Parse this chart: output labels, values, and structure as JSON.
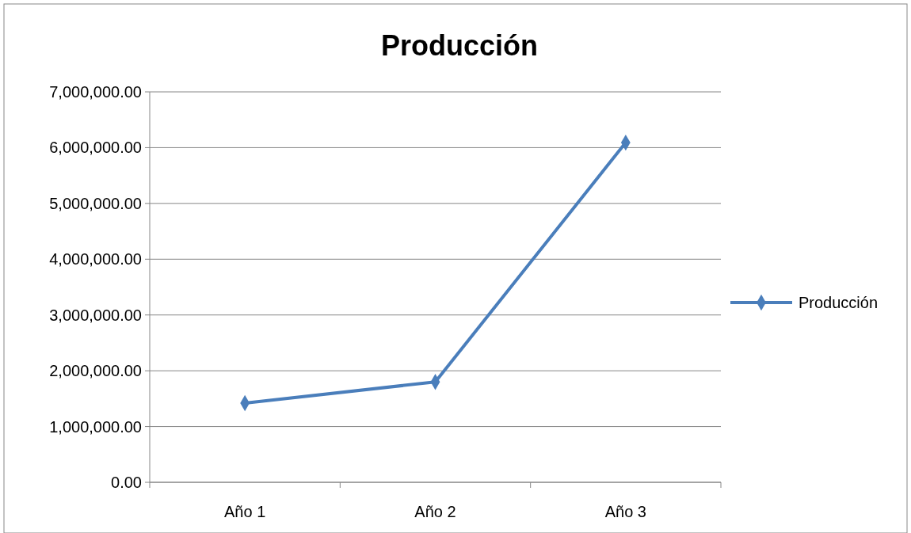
{
  "chart_data": {
    "type": "line",
    "title": "Producción",
    "categories": [
      "Año 1",
      "Año 2",
      "Año 3"
    ],
    "series": [
      {
        "name": "Producción",
        "color": "#4a7ebb",
        "values": [
          1420000,
          1800000,
          6090000
        ]
      }
    ],
    "ylim": [
      0,
      7000000
    ],
    "yticks": [
      {
        "value": 0,
        "label": "0.00"
      },
      {
        "value": 1000000,
        "label": "1,000,000.00"
      },
      {
        "value": 2000000,
        "label": "2,000,000.00"
      },
      {
        "value": 3000000,
        "label": "3,000,000.00"
      },
      {
        "value": 4000000,
        "label": "4,000,000.00"
      },
      {
        "value": 5000000,
        "label": "5,000,000.00"
      },
      {
        "value": 6000000,
        "label": "6,000,000.00"
      },
      {
        "value": 7000000,
        "label": "7,000,000.00"
      }
    ],
    "grid": "y",
    "legend": "right",
    "marker": "diamond",
    "line_style": "solid"
  }
}
